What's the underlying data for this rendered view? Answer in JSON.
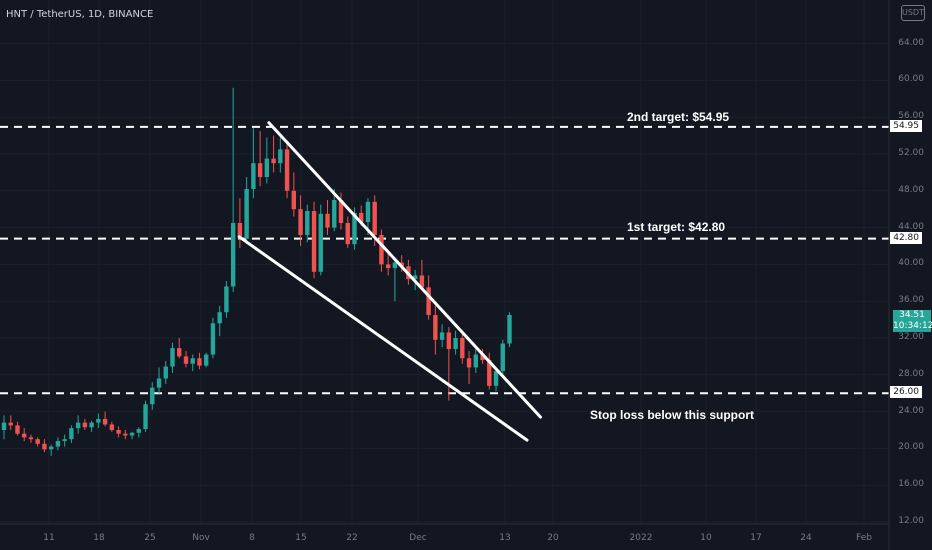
{
  "header": {
    "symbol": "HNT / TetherUS, 1D, BINANCE"
  },
  "currency_badge": "USDT",
  "current_price": {
    "value": "34.51",
    "countdown": "10:34:12"
  },
  "annotations": {
    "target2": "2nd target: $54.95",
    "target1": "1st target: $42.80",
    "stoploss": "Stop loss below this support"
  },
  "colors": {
    "up": "#26a69a",
    "down": "#ef5350",
    "background": "#131722",
    "annotation": "#ffffff"
  },
  "chart_data": {
    "type": "candlestick",
    "title": "HNT / TetherUS, 1D, BINANCE",
    "ylim": [
      12,
      68
    ],
    "y_ticks": [
      "12.00",
      "16.00",
      "20.00",
      "24.00",
      "28.00",
      "32.00",
      "36.00",
      "40.00",
      "44.00",
      "48.00",
      "52.00",
      "56.00",
      "60.00",
      "64.00"
    ],
    "x_ticks": [
      "11",
      "18",
      "25",
      "Nov",
      "8",
      "15",
      "22",
      "Dec",
      "13",
      "20",
      "2022",
      "10",
      "17",
      "24",
      "Feb"
    ],
    "levels": [
      {
        "label": "54.95",
        "value": 54.95
      },
      {
        "label": "42.80",
        "value": 42.8
      },
      {
        "label": "26.00",
        "value": 26.0
      }
    ],
    "candles": [
      {
        "o": 22.0,
        "h": 23.6,
        "l": 21.0,
        "c": 22.8
      },
      {
        "o": 22.8,
        "h": 23.6,
        "l": 22.0,
        "c": 22.5
      },
      {
        "o": 22.5,
        "h": 22.9,
        "l": 21.4,
        "c": 21.6
      },
      {
        "o": 21.6,
        "h": 22.2,
        "l": 20.8,
        "c": 21.2
      },
      {
        "o": 21.2,
        "h": 21.5,
        "l": 20.6,
        "c": 21.0
      },
      {
        "o": 21.0,
        "h": 21.2,
        "l": 20.2,
        "c": 20.5
      },
      {
        "o": 20.5,
        "h": 21.0,
        "l": 19.6,
        "c": 19.9
      },
      {
        "o": 19.9,
        "h": 20.4,
        "l": 19.2,
        "c": 20.2
      },
      {
        "o": 20.2,
        "h": 21.2,
        "l": 19.8,
        "c": 20.8
      },
      {
        "o": 20.8,
        "h": 21.5,
        "l": 20.2,
        "c": 21.0
      },
      {
        "o": 21.0,
        "h": 22.5,
        "l": 20.6,
        "c": 22.2
      },
      {
        "o": 22.2,
        "h": 23.6,
        "l": 21.6,
        "c": 22.8
      },
      {
        "o": 22.8,
        "h": 23.2,
        "l": 22.0,
        "c": 22.3
      },
      {
        "o": 22.3,
        "h": 23.0,
        "l": 21.8,
        "c": 22.8
      },
      {
        "o": 22.8,
        "h": 23.8,
        "l": 22.2,
        "c": 23.2
      },
      {
        "o": 23.2,
        "h": 24.0,
        "l": 22.4,
        "c": 22.6
      },
      {
        "o": 22.6,
        "h": 22.9,
        "l": 21.8,
        "c": 22.0
      },
      {
        "o": 22.0,
        "h": 22.4,
        "l": 21.2,
        "c": 21.6
      },
      {
        "o": 21.6,
        "h": 22.0,
        "l": 21.0,
        "c": 21.4
      },
      {
        "o": 21.4,
        "h": 21.8,
        "l": 21.0,
        "c": 21.7
      },
      {
        "o": 21.7,
        "h": 22.3,
        "l": 21.2,
        "c": 22.1
      },
      {
        "o": 22.1,
        "h": 25.2,
        "l": 21.8,
        "c": 24.8
      },
      {
        "o": 24.8,
        "h": 27.2,
        "l": 24.2,
        "c": 26.6
      },
      {
        "o": 26.6,
        "h": 28.8,
        "l": 25.8,
        "c": 27.6
      },
      {
        "o": 27.6,
        "h": 29.5,
        "l": 27.0,
        "c": 28.9
      },
      {
        "o": 28.9,
        "h": 31.5,
        "l": 28.2,
        "c": 30.9
      },
      {
        "o": 30.9,
        "h": 32.0,
        "l": 29.8,
        "c": 30.0
      },
      {
        "o": 30.0,
        "h": 30.6,
        "l": 28.8,
        "c": 29.2
      },
      {
        "o": 29.2,
        "h": 30.2,
        "l": 28.4,
        "c": 29.8
      },
      {
        "o": 29.8,
        "h": 30.4,
        "l": 28.6,
        "c": 29.0
      },
      {
        "o": 29.0,
        "h": 30.4,
        "l": 28.8,
        "c": 30.2
      },
      {
        "o": 30.2,
        "h": 34.2,
        "l": 29.8,
        "c": 33.6
      },
      {
        "o": 33.6,
        "h": 35.5,
        "l": 32.2,
        "c": 34.8
      },
      {
        "o": 34.8,
        "h": 38.2,
        "l": 34.2,
        "c": 37.6
      },
      {
        "o": 37.6,
        "h": 59.2,
        "l": 37.0,
        "c": 44.5
      },
      {
        "o": 44.5,
        "h": 47.2,
        "l": 41.8,
        "c": 42.8
      },
      {
        "o": 42.8,
        "h": 49.5,
        "l": 42.2,
        "c": 48.2
      },
      {
        "o": 48.2,
        "h": 54.8,
        "l": 47.2,
        "c": 51.0
      },
      {
        "o": 51.0,
        "h": 54.5,
        "l": 48.5,
        "c": 49.5
      },
      {
        "o": 49.5,
        "h": 53.8,
        "l": 48.8,
        "c": 51.5
      },
      {
        "o": 51.5,
        "h": 54.0,
        "l": 50.0,
        "c": 51.0
      },
      {
        "o": 51.0,
        "h": 54.0,
        "l": 50.0,
        "c": 52.5
      },
      {
        "o": 52.5,
        "h": 53.2,
        "l": 47.2,
        "c": 48.0
      },
      {
        "o": 48.0,
        "h": 50.0,
        "l": 45.2,
        "c": 46.0
      },
      {
        "o": 46.0,
        "h": 47.5,
        "l": 42.0,
        "c": 43.2
      },
      {
        "o": 43.2,
        "h": 46.5,
        "l": 42.4,
        "c": 45.8
      },
      {
        "o": 45.8,
        "h": 46.8,
        "l": 38.5,
        "c": 39.2
      },
      {
        "o": 39.2,
        "h": 46.5,
        "l": 38.8,
        "c": 45.5
      },
      {
        "o": 45.5,
        "h": 47.0,
        "l": 43.2,
        "c": 44.0
      },
      {
        "o": 44.0,
        "h": 48.2,
        "l": 43.6,
        "c": 47.0
      },
      {
        "o": 47.0,
        "h": 47.8,
        "l": 43.8,
        "c": 44.5
      },
      {
        "o": 44.5,
        "h": 45.2,
        "l": 41.8,
        "c": 42.2
      },
      {
        "o": 42.2,
        "h": 46.2,
        "l": 41.6,
        "c": 45.6
      },
      {
        "o": 45.6,
        "h": 46.4,
        "l": 44.2,
        "c": 44.6
      },
      {
        "o": 44.6,
        "h": 47.2,
        "l": 43.2,
        "c": 46.8
      },
      {
        "o": 46.8,
        "h": 47.5,
        "l": 42.0,
        "c": 43.2
      },
      {
        "o": 43.2,
        "h": 43.8,
        "l": 39.2,
        "c": 40.0
      },
      {
        "o": 40.0,
        "h": 41.5,
        "l": 38.8,
        "c": 39.6
      },
      {
        "o": 39.6,
        "h": 40.8,
        "l": 36.0,
        "c": 40.2
      },
      {
        "o": 40.2,
        "h": 41.0,
        "l": 39.2,
        "c": 39.8
      },
      {
        "o": 39.8,
        "h": 40.5,
        "l": 37.8,
        "c": 38.4
      },
      {
        "o": 38.4,
        "h": 39.4,
        "l": 37.2,
        "c": 38.8
      },
      {
        "o": 38.8,
        "h": 40.5,
        "l": 37.8,
        "c": 37.5
      },
      {
        "o": 37.5,
        "h": 38.8,
        "l": 34.0,
        "c": 34.5
      },
      {
        "o": 34.5,
        "h": 35.5,
        "l": 30.2,
        "c": 31.8
      },
      {
        "o": 31.8,
        "h": 33.5,
        "l": 31.0,
        "c": 32.6
      },
      {
        "o": 32.6,
        "h": 33.2,
        "l": 25.2,
        "c": 30.8
      },
      {
        "o": 30.8,
        "h": 32.8,
        "l": 30.2,
        "c": 32.0
      },
      {
        "o": 32.0,
        "h": 32.4,
        "l": 29.2,
        "c": 29.8
      },
      {
        "o": 29.8,
        "h": 30.6,
        "l": 27.0,
        "c": 28.8
      },
      {
        "o": 28.8,
        "h": 30.8,
        "l": 28.2,
        "c": 30.2
      },
      {
        "o": 30.2,
        "h": 30.8,
        "l": 29.2,
        "c": 29.6
      },
      {
        "o": 29.6,
        "h": 30.4,
        "l": 26.4,
        "c": 26.8
      },
      {
        "o": 26.8,
        "h": 28.8,
        "l": 26.2,
        "c": 28.4
      },
      {
        "o": 28.4,
        "h": 31.8,
        "l": 28.0,
        "c": 31.4
      },
      {
        "o": 31.4,
        "h": 34.8,
        "l": 31.0,
        "c": 34.5
      }
    ],
    "trendlines": [
      {
        "name": "falling wedge resistance",
        "from": {
          "candle": 39.3,
          "value": 55.4
        },
        "to": {
          "candle": 79.6,
          "value": 23.4
        }
      },
      {
        "name": "falling wedge support",
        "from": {
          "candle": 34.9,
          "value": 43.0
        },
        "to": {
          "candle": 77.6,
          "value": 20.9
        }
      }
    ]
  }
}
